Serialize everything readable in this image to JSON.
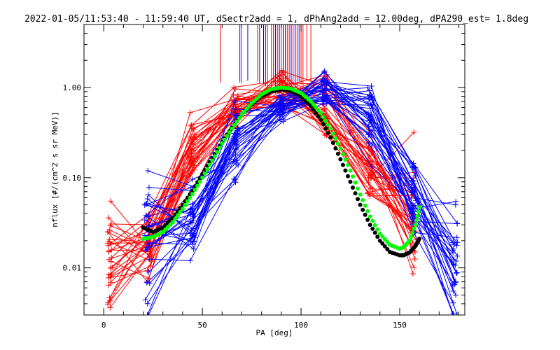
{
  "chart_data": {
    "type": "line",
    "title": "2022-01-05/11:53:40 - 11:59:40 UT, dSectr2add = 1, dPhAng2add = 12.00deg, dPA290_est=   1.8deg",
    "xlabel": "PA [deg]",
    "ylabel": "nflux [#/(cm^2 s sr MeV)]",
    "xlim": [
      -10,
      183
    ],
    "ylim": [
      0.003,
      5.0
    ],
    "y_scale": "log",
    "x_ticks": [
      0,
      50,
      100,
      150
    ],
    "x_tick_labels": [
      "0",
      "50",
      "100",
      "150"
    ],
    "y_ticks": [
      0.01,
      0.1,
      1.0
    ],
    "y_tick_labels": [
      "0.01",
      "0.10",
      "1.00"
    ],
    "grid": false,
    "legend": "none",
    "colors": {
      "red": "#ff0000",
      "blue": "#0000ff",
      "fit_black": "#000000",
      "fit_green": "#00ff00"
    },
    "bundles": {
      "red_pa_bins": [
        3,
        23,
        45,
        67,
        90,
        112,
        135,
        157
      ],
      "blue_pa_bins": [
        22,
        45,
        67,
        90,
        112,
        135,
        157,
        178
      ],
      "red_nominal": [
        0.012,
        0.02,
        0.2,
        0.62,
        0.92,
        0.55,
        0.12,
        0.028
      ],
      "blue_nominal": [
        0.02,
        0.035,
        0.25,
        0.65,
        0.92,
        0.42,
        0.07,
        0.012
      ],
      "count_per_color": 32
    },
    "series": [
      {
        "color": "#000000",
        "x": [
          20,
          25,
          30,
          35,
          40,
          45,
          50,
          55,
          60,
          65,
          70,
          75,
          80,
          85,
          90,
          95,
          100,
          105,
          110,
          115,
          120,
          125,
          130,
          135,
          140,
          145,
          150,
          152,
          155,
          158,
          160
        ],
        "y": [
          0.028,
          0.025,
          0.028,
          0.036,
          0.05,
          0.072,
          0.11,
          0.165,
          0.25,
          0.36,
          0.5,
          0.65,
          0.8,
          0.91,
          0.95,
          0.92,
          0.8,
          0.62,
          0.44,
          0.28,
          0.16,
          0.09,
          0.05,
          0.03,
          0.02,
          0.015,
          0.0138,
          0.0138,
          0.0148,
          0.0175,
          0.021
        ]
      },
      {
        "color": "#00ff00",
        "x": [
          20,
          25,
          30,
          35,
          40,
          45,
          50,
          55,
          60,
          65,
          70,
          75,
          80,
          85,
          90,
          95,
          100,
          105,
          110,
          115,
          120,
          125,
          130,
          135,
          140,
          145,
          150,
          152,
          155,
          158,
          160
        ],
        "y": [
          0.021,
          0.022,
          0.025,
          0.032,
          0.045,
          0.066,
          0.1,
          0.155,
          0.24,
          0.35,
          0.5,
          0.67,
          0.84,
          0.96,
          1.0,
          0.97,
          0.87,
          0.7,
          0.52,
          0.35,
          0.21,
          0.12,
          0.065,
          0.037,
          0.024,
          0.018,
          0.0163,
          0.017,
          0.02,
          0.03,
          0.047
        ]
      }
    ],
    "spikes": {
      "red_x": [
        59,
        70,
        78,
        83,
        85,
        86,
        87,
        88,
        89,
        90,
        91,
        92,
        93,
        94,
        95,
        96,
        97,
        98,
        100,
        101,
        103,
        105
      ],
      "blue_x": [
        69,
        73,
        79,
        81,
        82,
        87,
        89,
        91,
        92,
        95,
        97,
        99
      ]
    }
  }
}
